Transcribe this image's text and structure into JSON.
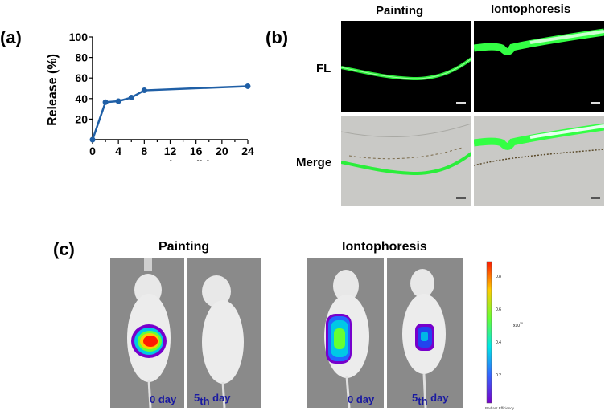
{
  "panels": {
    "a": "(a)",
    "b": "(b)",
    "c": "(c)"
  },
  "chart_data": {
    "type": "line",
    "xlabel": "Time (h)",
    "ylabel": "Release  (%)",
    "xlim": [
      0,
      24
    ],
    "ylim": [
      0,
      100
    ],
    "xticks": [
      "0",
      "4",
      "8",
      "12",
      "16",
      "20",
      "24"
    ],
    "yticks": [
      "20",
      "40",
      "60",
      "80",
      "100"
    ],
    "x": [
      0,
      2,
      4,
      6,
      8,
      24
    ],
    "y": [
      0,
      36.5,
      37.5,
      41,
      48,
      52
    ],
    "line_color": "#1f5fa6",
    "grid": false
  },
  "microscopy": {
    "columns": [
      "Painting",
      "Iontophoresis"
    ],
    "rows": [
      "FL",
      "Merge"
    ],
    "fluorescence_color": "#33ff44"
  },
  "imaging": {
    "groups": [
      "Painting",
      "Iontophoresis"
    ],
    "days": {
      "day0": "0 day",
      "day5_num": "5",
      "day5_sup": "th",
      "day5_word": "day"
    },
    "colorbar": {
      "ticks": [
        "0.8",
        "0.6",
        "0.4",
        "0.2"
      ],
      "scale": "x10",
      "exponent": "10",
      "label": "Radiant Efficiency",
      "colors": [
        "#ff1a00",
        "#ffcc00",
        "#66ff33",
        "#00e6e6",
        "#3366ff",
        "#7700cc"
      ]
    }
  }
}
